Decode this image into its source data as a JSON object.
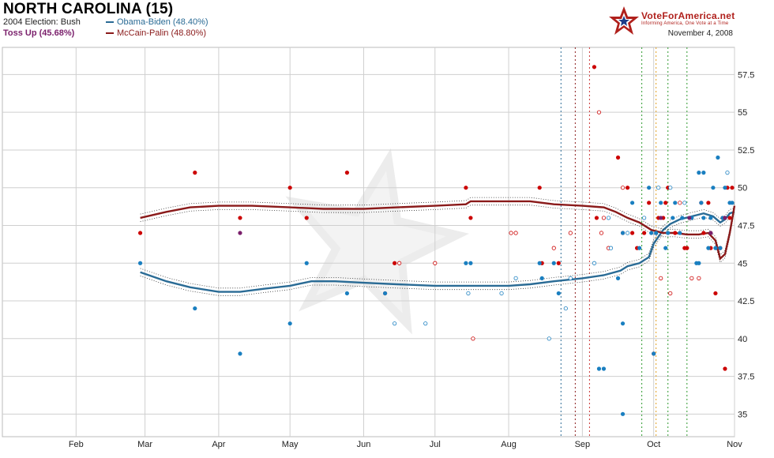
{
  "header": {
    "title": "NORTH CAROLINA (15)",
    "election_2004": "2004 Election: Bush",
    "toss_up": "Toss Up (45.68%)",
    "date": "November 4, 2008"
  },
  "logo": {
    "name": "VoteForAmerica.net",
    "tagline": "Informing America, One Vote at a Time"
  },
  "colors": {
    "obama": "#2a6b95",
    "mccain": "#8a1a1a",
    "obama_dot": "#1a7fc0",
    "mccain_dot": "#cc0000",
    "tossup": "#7a1f6b"
  },
  "chart_data": {
    "type": "line",
    "x_ticks": [
      "Feb",
      "Mar",
      "Apr",
      "May",
      "Jun",
      "Jul",
      "Aug",
      "Sep",
      "Oct",
      "Nov"
    ],
    "y_ticks": [
      35,
      37.5,
      40,
      42.5,
      45,
      47.5,
      50,
      52.5,
      55,
      57.5
    ],
    "ylim": [
      33.5,
      59.3
    ],
    "xlim": [
      "2008-01-01",
      "2008-11-04"
    ],
    "grid": true,
    "legend_position": "top-left",
    "series": [
      {
        "name": "Obama-Biden (48.40%)",
        "color": "#2a6b95",
        "points": [
          [
            "2008-02-28",
            44.4
          ],
          [
            "2008-03-10",
            43.8
          ],
          [
            "2008-03-20",
            43.4
          ],
          [
            "2008-04-01",
            43.1
          ],
          [
            "2008-04-10",
            43.1
          ],
          [
            "2008-04-20",
            43.3
          ],
          [
            "2008-05-01",
            43.5
          ],
          [
            "2008-05-10",
            43.8
          ],
          [
            "2008-05-20",
            43.8
          ],
          [
            "2008-06-01",
            43.7
          ],
          [
            "2008-06-15",
            43.6
          ],
          [
            "2008-07-01",
            43.5
          ],
          [
            "2008-07-15",
            43.5
          ],
          [
            "2008-08-01",
            43.5
          ],
          [
            "2008-08-10",
            43.6
          ],
          [
            "2008-08-20",
            43.8
          ],
          [
            "2008-09-01",
            44.0
          ],
          [
            "2008-09-10",
            44.2
          ],
          [
            "2008-09-17",
            44.5
          ],
          [
            "2008-09-20",
            44.8
          ],
          [
            "2008-09-25",
            45.0
          ],
          [
            "2008-09-29",
            45.4
          ],
          [
            "2008-10-01",
            46.3
          ],
          [
            "2008-10-05",
            47.2
          ],
          [
            "2008-10-08",
            47.6
          ],
          [
            "2008-10-12",
            47.9
          ],
          [
            "2008-10-17",
            48.1
          ],
          [
            "2008-10-22",
            48.3
          ],
          [
            "2008-10-26",
            48.1
          ],
          [
            "2008-10-29",
            47.7
          ],
          [
            "2008-10-31",
            47.9
          ],
          [
            "2008-11-02",
            48.3
          ],
          [
            "2008-11-04",
            48.4
          ]
        ]
      },
      {
        "name": "McCain-Palin (48.80%)",
        "color": "#8a1a1a",
        "points": [
          [
            "2008-02-28",
            48.0
          ],
          [
            "2008-03-10",
            48.4
          ],
          [
            "2008-03-20",
            48.7
          ],
          [
            "2008-04-01",
            48.8
          ],
          [
            "2008-04-15",
            48.8
          ],
          [
            "2008-05-01",
            48.7
          ],
          [
            "2008-05-15",
            48.6
          ],
          [
            "2008-06-01",
            48.6
          ],
          [
            "2008-06-15",
            48.7
          ],
          [
            "2008-07-01",
            48.8
          ],
          [
            "2008-07-14",
            48.9
          ],
          [
            "2008-07-16",
            49.1
          ],
          [
            "2008-08-01",
            49.1
          ],
          [
            "2008-08-10",
            49.1
          ],
          [
            "2008-08-20",
            48.9
          ],
          [
            "2008-09-01",
            48.8
          ],
          [
            "2008-09-10",
            48.7
          ],
          [
            "2008-09-15",
            48.4
          ],
          [
            "2008-09-20",
            48.0
          ],
          [
            "2008-09-25",
            47.7
          ],
          [
            "2008-09-30",
            47.2
          ],
          [
            "2008-10-05",
            47.0
          ],
          [
            "2008-10-10",
            47.0
          ],
          [
            "2008-10-15",
            46.9
          ],
          [
            "2008-10-20",
            46.9
          ],
          [
            "2008-10-24",
            47.0
          ],
          [
            "2008-10-27",
            46.5
          ],
          [
            "2008-10-29",
            45.3
          ],
          [
            "2008-10-31",
            45.6
          ],
          [
            "2008-11-02",
            47.0
          ],
          [
            "2008-11-04",
            48.8
          ]
        ]
      }
    ],
    "obama_polls": [
      [
        "2008-02-28",
        45
      ],
      [
        "2008-03-22",
        42
      ],
      [
        "2008-04-10",
        39
      ],
      [
        "2008-05-01",
        41
      ],
      [
        "2008-05-08",
        45
      ],
      [
        "2008-05-25",
        43
      ],
      [
        "2008-06-10",
        43
      ],
      [
        "2008-06-14",
        41,
        "o"
      ],
      [
        "2008-06-27",
        41,
        "o"
      ],
      [
        "2008-07-14",
        45
      ],
      [
        "2008-07-16",
        45
      ],
      [
        "2008-07-15",
        43,
        "o"
      ],
      [
        "2008-07-29",
        43,
        "o"
      ],
      [
        "2008-08-04",
        44,
        "o"
      ],
      [
        "2008-08-14",
        45
      ],
      [
        "2008-08-15",
        44
      ],
      [
        "2008-08-18",
        40,
        "o"
      ],
      [
        "2008-08-20",
        45
      ],
      [
        "2008-08-22",
        43
      ],
      [
        "2008-08-25",
        42,
        "o"
      ],
      [
        "2008-08-27",
        44,
        "o"
      ],
      [
        "2008-09-06",
        45,
        "o"
      ],
      [
        "2008-09-08",
        38
      ],
      [
        "2008-09-10",
        38
      ],
      [
        "2008-09-12",
        48,
        "o"
      ],
      [
        "2008-09-13",
        46,
        "o"
      ],
      [
        "2008-09-16",
        44
      ],
      [
        "2008-09-18",
        35
      ],
      [
        "2008-09-18",
        41
      ],
      [
        "2008-09-18",
        47
      ],
      [
        "2008-09-20",
        47,
        "o"
      ],
      [
        "2008-09-22",
        49
      ],
      [
        "2008-09-25",
        46
      ],
      [
        "2008-09-27",
        48,
        "o"
      ],
      [
        "2008-09-29",
        50
      ],
      [
        "2008-09-30",
        47
      ],
      [
        "2008-10-01",
        39
      ],
      [
        "2008-10-02",
        47
      ],
      [
        "2008-10-03",
        50,
        "o"
      ],
      [
        "2008-10-04",
        49
      ],
      [
        "2008-10-06",
        46
      ],
      [
        "2008-10-07",
        47
      ],
      [
        "2008-10-08",
        50,
        "o"
      ],
      [
        "2008-10-09",
        48
      ],
      [
        "2008-10-10",
        49
      ],
      [
        "2008-10-12",
        47
      ],
      [
        "2008-10-13",
        48
      ],
      [
        "2008-10-14",
        49,
        "o"
      ],
      [
        "2008-10-17",
        48
      ],
      [
        "2008-10-19",
        45
      ],
      [
        "2008-10-20",
        45
      ],
      [
        "2008-10-20",
        51
      ],
      [
        "2008-10-21",
        49
      ],
      [
        "2008-10-22",
        48
      ],
      [
        "2008-10-22",
        51
      ],
      [
        "2008-10-24",
        46
      ],
      [
        "2008-10-25",
        48
      ],
      [
        "2008-10-26",
        50
      ],
      [
        "2008-10-27",
        46
      ],
      [
        "2008-10-28",
        52
      ],
      [
        "2008-10-29",
        46
      ],
      [
        "2008-10-30",
        48
      ],
      [
        "2008-10-31",
        50
      ],
      [
        "2008-11-01",
        51,
        "o"
      ],
      [
        "2008-11-02",
        49
      ],
      [
        "2008-11-03",
        49
      ]
    ],
    "mccain_polls": [
      [
        "2008-02-28",
        47
      ],
      [
        "2008-03-22",
        51
      ],
      [
        "2008-04-10",
        48
      ],
      [
        "2008-05-01",
        50
      ],
      [
        "2008-05-08",
        48
      ],
      [
        "2008-05-25",
        51
      ],
      [
        "2008-06-10",
        43,
        "o"
      ],
      [
        "2008-06-14",
        45
      ],
      [
        "2008-06-16",
        45,
        "o"
      ],
      [
        "2008-07-01",
        45,
        "o"
      ],
      [
        "2008-07-14",
        50
      ],
      [
        "2008-07-16",
        48
      ],
      [
        "2008-07-17",
        40,
        "o"
      ],
      [
        "2008-08-02",
        47,
        "o"
      ],
      [
        "2008-08-04",
        47,
        "o"
      ],
      [
        "2008-08-14",
        50
      ],
      [
        "2008-08-15",
        45
      ],
      [
        "2008-08-20",
        46,
        "o"
      ],
      [
        "2008-08-22",
        45
      ],
      [
        "2008-08-27",
        47,
        "o"
      ],
      [
        "2008-09-06",
        58
      ],
      [
        "2008-09-07",
        48
      ],
      [
        "2008-09-08",
        55,
        "o"
      ],
      [
        "2008-09-09",
        47,
        "o"
      ],
      [
        "2008-09-10",
        48,
        "o"
      ],
      [
        "2008-09-12",
        46,
        "o"
      ],
      [
        "2008-09-16",
        52
      ],
      [
        "2008-09-18",
        47
      ],
      [
        "2008-09-18",
        50,
        "o"
      ],
      [
        "2008-09-20",
        50
      ],
      [
        "2008-09-22",
        47
      ],
      [
        "2008-09-24",
        46
      ],
      [
        "2008-09-27",
        47
      ],
      [
        "2008-09-29",
        49
      ],
      [
        "2008-10-01",
        39
      ],
      [
        "2008-10-03",
        48
      ],
      [
        "2008-10-04",
        44,
        "o"
      ],
      [
        "2008-10-05",
        48
      ],
      [
        "2008-10-06",
        49
      ],
      [
        "2008-10-07",
        50
      ],
      [
        "2008-10-08",
        43,
        "o"
      ],
      [
        "2008-10-10",
        47
      ],
      [
        "2008-10-12",
        49,
        "o"
      ],
      [
        "2008-10-14",
        46
      ],
      [
        "2008-10-15",
        46
      ],
      [
        "2008-10-17",
        44,
        "o"
      ],
      [
        "2008-10-20",
        44,
        "o"
      ],
      [
        "2008-10-21",
        49
      ],
      [
        "2008-10-22",
        47
      ],
      [
        "2008-10-24",
        49
      ],
      [
        "2008-10-25",
        46
      ],
      [
        "2008-10-27",
        43
      ],
      [
        "2008-10-29",
        46
      ],
      [
        "2008-10-30",
        48
      ],
      [
        "2008-10-31",
        38
      ],
      [
        "2008-11-01",
        50
      ],
      [
        "2008-11-02",
        48
      ],
      [
        "2008-11-03",
        50
      ]
    ],
    "tossup_polls": [
      [
        "2008-04-10",
        47
      ],
      [
        "2008-10-04",
        48
      ],
      [
        "2008-10-16",
        48
      ],
      [
        "2008-10-25",
        47
      ],
      [
        "2008-10-31",
        48
      ]
    ],
    "event_lines": [
      {
        "date": "2008-08-23",
        "color": "#2a6b95"
      },
      {
        "date": "2008-08-29",
        "color": "#8a1a1a"
      },
      {
        "date": "2008-09-04",
        "color": "#cc3333"
      },
      {
        "date": "2008-09-26",
        "color": "#2e9a2e"
      },
      {
        "date": "2008-10-02",
        "color": "#e0a020"
      },
      {
        "date": "2008-10-07",
        "color": "#2e9a2e"
      },
      {
        "date": "2008-10-15",
        "color": "#2e9a2e"
      }
    ]
  }
}
